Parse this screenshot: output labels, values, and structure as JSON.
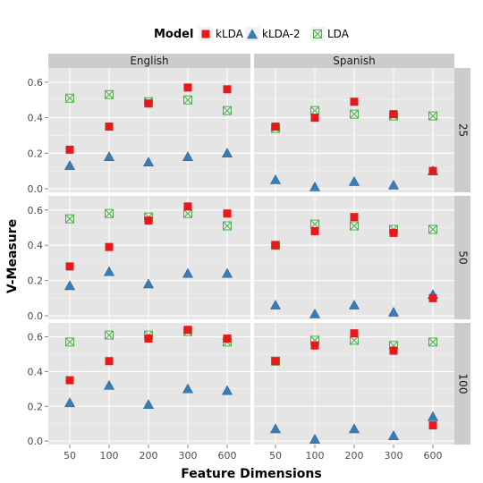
{
  "colors": {
    "panel_bg": "#e5e5e5",
    "strip_bg": "#cccccc",
    "grid_major": "#ffffff",
    "grid_minor": "#f2f2f2",
    "kLDA": "#e41a1c",
    "kLDA-2": "#377eb8",
    "LDA": "#4daf4a"
  },
  "chart_data": {
    "type": "scatter",
    "xlabel": "Feature Dimensions",
    "ylabel": "V-Measure",
    "x_categories": [
      "50",
      "100",
      "200",
      "300",
      "600"
    ],
    "y_ticks": [
      "0.0",
      "0.2",
      "0.4",
      "0.6"
    ],
    "ylim": [
      -0.02,
      0.68
    ],
    "legend": {
      "title": "Model",
      "position": "top",
      "entries": [
        {
          "name": "kLDA",
          "marker": "square",
          "color": "#e41a1c"
        },
        {
          "name": "kLDA-2",
          "marker": "triangle",
          "color": "#377eb8"
        },
        {
          "name": "LDA",
          "marker": "boxed-x",
          "color": "#4daf4a"
        }
      ]
    },
    "col_facets": [
      "English",
      "Spanish"
    ],
    "row_facets": [
      "25",
      "50",
      "100"
    ],
    "panels": [
      {
        "col": "English",
        "row": "25",
        "series": {
          "kLDA": [
            0.22,
            0.35,
            0.48,
            0.57,
            0.56
          ],
          "kLDA-2": [
            0.13,
            0.18,
            0.15,
            0.18,
            0.2
          ],
          "LDA": [
            0.51,
            0.53,
            0.49,
            0.5,
            0.44
          ]
        }
      },
      {
        "col": "Spanish",
        "row": "25",
        "series": {
          "kLDA": [
            0.35,
            0.4,
            0.49,
            0.42,
            0.1
          ],
          "kLDA-2": [
            0.05,
            0.01,
            0.04,
            0.02,
            0.1
          ],
          "LDA": [
            0.34,
            0.44,
            0.42,
            0.41,
            0.41
          ]
        }
      },
      {
        "col": "English",
        "row": "50",
        "series": {
          "kLDA": [
            0.28,
            0.39,
            0.54,
            0.62,
            0.58
          ],
          "kLDA-2": [
            0.17,
            0.25,
            0.18,
            0.24,
            0.24
          ],
          "LDA": [
            0.55,
            0.58,
            0.56,
            0.58,
            0.51
          ]
        }
      },
      {
        "col": "Spanish",
        "row": "50",
        "series": {
          "kLDA": [
            0.4,
            0.48,
            0.56,
            0.47,
            0.1
          ],
          "kLDA-2": [
            0.06,
            0.01,
            0.06,
            0.02,
            0.12
          ],
          "LDA": [
            0.4,
            0.52,
            0.51,
            0.49,
            0.49
          ]
        }
      },
      {
        "col": "English",
        "row": "100",
        "series": {
          "kLDA": [
            0.35,
            0.46,
            0.59,
            0.64,
            0.59
          ],
          "kLDA-2": [
            0.22,
            0.32,
            0.21,
            0.3,
            0.29
          ],
          "LDA": [
            0.57,
            0.61,
            0.61,
            0.63,
            0.57
          ]
        }
      },
      {
        "col": "Spanish",
        "row": "100",
        "series": {
          "kLDA": [
            0.46,
            0.55,
            0.62,
            0.52,
            0.09
          ],
          "kLDA-2": [
            0.07,
            0.01,
            0.07,
            0.03,
            0.14
          ],
          "LDA": [
            0.46,
            0.58,
            0.58,
            0.55,
            0.57
          ]
        }
      }
    ]
  }
}
